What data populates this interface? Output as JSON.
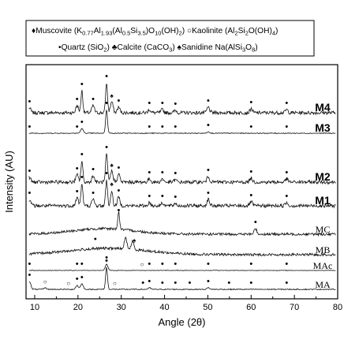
{
  "chart_data": {
    "type": "line",
    "chart_kind": "stacked XRD diffractogram",
    "xlabel": "Angle (2θ)",
    "ylabel": "Intensity (AU)",
    "xlim": [
      8,
      80
    ],
    "x_ticks": [
      10,
      20,
      30,
      40,
      50,
      60,
      70,
      80
    ],
    "y_tick_labels": false,
    "grid": false,
    "legend_position": "top (boxed, above plot)",
    "legend": [
      {
        "symbol": "♦",
        "pre": "Muscovite (K",
        "formula": [
          [
            "0.77",
            "sub"
          ],
          [
            "Al",
            ""
          ],
          [
            "1.93",
            "sub"
          ],
          [
            "(Al",
            ""
          ],
          [
            "0.5",
            "sub"
          ],
          [
            "Si",
            ""
          ],
          [
            "3.5",
            "sub"
          ],
          [
            ")O",
            ""
          ],
          [
            "10",
            "sub"
          ],
          [
            "(OH)",
            ""
          ],
          [
            "2",
            "sub"
          ],
          [
            ")",
            ""
          ]
        ]
      },
      {
        "symbol": "○",
        "pre": "Kaolinite (Al",
        "formula": [
          [
            "2",
            "sub"
          ],
          [
            "Si",
            ""
          ],
          [
            "2",
            "sub"
          ],
          [
            "O(OH)",
            ""
          ],
          [
            "4",
            "sub"
          ],
          [
            ")",
            ""
          ]
        ]
      },
      {
        "symbol": "•",
        "pre": "Quartz (SiO",
        "formula": [
          [
            "2",
            "sub"
          ],
          [
            ")",
            ""
          ]
        ]
      },
      {
        "symbol": "♣",
        "pre": "Calcite (CaCO",
        "formula": [
          [
            "3",
            "sub"
          ],
          [
            ")",
            ""
          ]
        ]
      },
      {
        "symbol": "♠",
        "pre": "Sanidine Na(AlSi",
        "formula": [
          [
            "3",
            "sub"
          ],
          [
            "O",
            ""
          ],
          [
            "8",
            "sub"
          ],
          [
            ")",
            ""
          ]
        ]
      }
    ],
    "series": [
      {
        "name": "M4",
        "label_style": "bold",
        "noise": 2.2,
        "peaks": [
          [
            8.8,
            6
          ],
          [
            19.8,
            9
          ],
          [
            20.9,
            28
          ],
          [
            23.5,
            9
          ],
          [
            26.6,
            38
          ],
          [
            27.8,
            14
          ],
          [
            29.4,
            7
          ],
          [
            36.5,
            4
          ],
          [
            39.5,
            4
          ],
          [
            42.5,
            3
          ],
          [
            50.1,
            7
          ],
          [
            60,
            5
          ],
          [
            68.2,
            4
          ]
        ],
        "markers": [
          [
            8.8,
            "•"
          ],
          [
            19.8,
            "•"
          ],
          [
            20.9,
            "•"
          ],
          [
            23.5,
            "•"
          ],
          [
            26.6,
            "•"
          ],
          [
            27.8,
            "♠"
          ],
          [
            29.4,
            "•"
          ],
          [
            36.5,
            "•"
          ],
          [
            39.5,
            "•"
          ],
          [
            42.5,
            "•"
          ],
          [
            50.1,
            "•"
          ],
          [
            60,
            "•"
          ],
          [
            68.2,
            "•"
          ]
        ]
      },
      {
        "name": "M3",
        "label_style": "bold",
        "noise": 0.5,
        "peaks": [
          [
            20.9,
            6
          ],
          [
            26.6,
            30
          ],
          [
            50.1,
            2
          ]
        ],
        "markers": [
          [
            8.8,
            "•"
          ],
          [
            19.8,
            "•"
          ],
          [
            20.9,
            "•"
          ],
          [
            26.6,
            "•"
          ],
          [
            36.5,
            "•"
          ],
          [
            39.5,
            "•"
          ],
          [
            42.5,
            "•"
          ],
          [
            50.1,
            "•"
          ],
          [
            60,
            "•"
          ],
          [
            68.2,
            "•"
          ]
        ]
      },
      {
        "name": "M2",
        "label_style": "bold",
        "noise": 2.2,
        "peaks": [
          [
            8.8,
            6
          ],
          [
            19.8,
            9
          ],
          [
            20.9,
            27
          ],
          [
            23.5,
            8
          ],
          [
            26.6,
            36
          ],
          [
            27.8,
            14
          ],
          [
            29.4,
            10
          ],
          [
            36.5,
            4
          ],
          [
            39.5,
            4
          ],
          [
            42.5,
            3
          ],
          [
            50.1,
            7
          ],
          [
            60,
            5
          ],
          [
            68.2,
            4
          ]
        ],
        "markers": [
          [
            8.8,
            "•"
          ],
          [
            19.8,
            "•"
          ],
          [
            20.9,
            "•"
          ],
          [
            23.5,
            "•"
          ],
          [
            26.6,
            "•"
          ],
          [
            27.8,
            "♠"
          ],
          [
            29.4,
            "•"
          ],
          [
            36.5,
            "•"
          ],
          [
            39.5,
            "•"
          ],
          [
            42.5,
            "•"
          ],
          [
            50.1,
            "•"
          ],
          [
            60,
            "•"
          ],
          [
            68.2,
            "•"
          ]
        ]
      },
      {
        "name": "M1",
        "label_style": "bold",
        "noise": 2.2,
        "peaks": [
          [
            8.8,
            8
          ],
          [
            19.8,
            10
          ],
          [
            20.9,
            28
          ],
          [
            23.5,
            8
          ],
          [
            26.6,
            33
          ],
          [
            27.8,
            20
          ],
          [
            29.4,
            11
          ],
          [
            36.5,
            4
          ],
          [
            39.5,
            4
          ],
          [
            42.5,
            3
          ],
          [
            50.1,
            8
          ],
          [
            60,
            5
          ],
          [
            68.2,
            4
          ]
        ],
        "markers": [
          [
            8.8,
            "•"
          ],
          [
            19.8,
            "•"
          ],
          [
            20.9,
            "•"
          ],
          [
            23.5,
            "•"
          ],
          [
            26.6,
            "•"
          ],
          [
            27.8,
            "♠"
          ],
          [
            29.4,
            "•"
          ],
          [
            36.5,
            "•"
          ],
          [
            39.5,
            "•"
          ],
          [
            42.5,
            "•"
          ],
          [
            50.1,
            "•"
          ],
          [
            60,
            "•"
          ],
          [
            68.2,
            "•"
          ]
        ]
      },
      {
        "name": "MC",
        "label_style": "serif",
        "noise": 1.6,
        "hump": [
          26,
          7,
          7
        ],
        "peaks": [
          [
            29.4,
            22
          ],
          [
            61,
            7
          ]
        ],
        "markers": [
          [
            29.4,
            "•"
          ],
          [
            61,
            "•"
          ]
        ]
      },
      {
        "name": "MB",
        "label_style": "serif",
        "noise": 1.6,
        "hump": [
          27,
          8,
          9
        ],
        "peaks": [
          [
            31,
            14
          ],
          [
            32.6,
            10
          ]
        ],
        "markers": [
          [
            24,
            "•"
          ],
          [
            33,
            "♠"
          ]
        ]
      },
      {
        "name": "MAc",
        "label_style": "serif",
        "noise": 0.3,
        "peaks": [
          [
            26.6,
            8
          ]
        ],
        "markers": [
          [
            8.8,
            "•"
          ],
          [
            19.8,
            "•"
          ],
          [
            20.9,
            "•"
          ],
          [
            26.6,
            "•"
          ],
          [
            34.8,
            "○"
          ],
          [
            36.5,
            "•"
          ],
          [
            39.5,
            "•"
          ],
          [
            42.5,
            "•"
          ],
          [
            50.1,
            "•"
          ],
          [
            60,
            "•"
          ],
          [
            68.2,
            "•"
          ]
        ]
      },
      {
        "name": "MA",
        "label_style": "serif",
        "noise": 0.6,
        "peaks": [
          [
            8.8,
            10
          ],
          [
            12.4,
            2
          ],
          [
            19.8,
            5
          ],
          [
            20.9,
            7
          ],
          [
            26.6,
            28
          ],
          [
            36.5,
            2
          ],
          [
            50.1,
            2
          ]
        ],
        "markers": [
          [
            8.8,
            "•"
          ],
          [
            12.4,
            "○"
          ],
          [
            17.8,
            "○"
          ],
          [
            19.8,
            "•"
          ],
          [
            20.9,
            "•"
          ],
          [
            26.6,
            "•"
          ],
          [
            28.5,
            "○"
          ],
          [
            35,
            "•"
          ],
          [
            36.5,
            "•"
          ],
          [
            39.5,
            "•"
          ],
          [
            42.5,
            "•"
          ],
          [
            45.8,
            "•"
          ],
          [
            50.1,
            "•"
          ],
          [
            54.9,
            "•"
          ],
          [
            60,
            "•"
          ],
          [
            68.2,
            "•"
          ]
        ]
      }
    ]
  }
}
